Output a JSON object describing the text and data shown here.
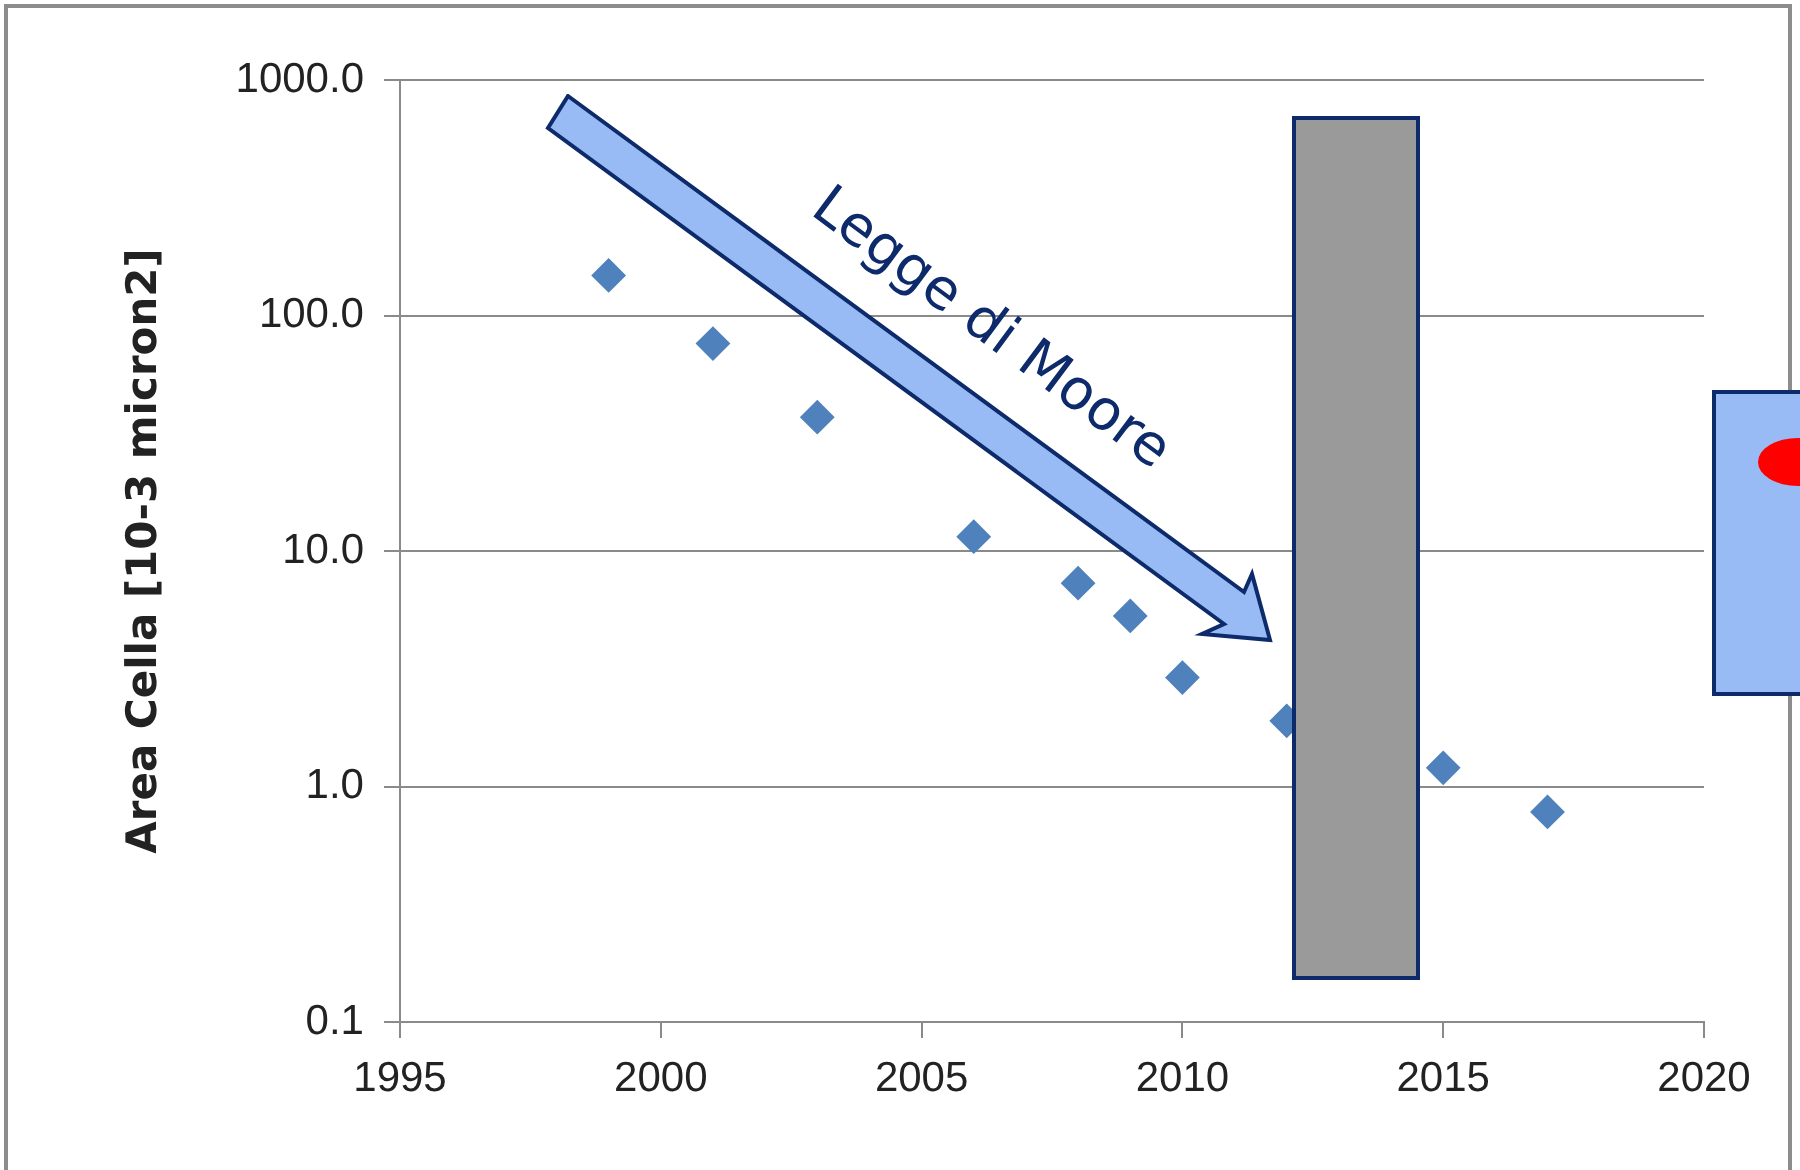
{
  "chart_data": {
    "type": "scatter",
    "ylabel": "Area Cella [10-3 micron2]",
    "x": [
      1999,
      2001,
      2003,
      2006,
      2008,
      2009,
      2010,
      2012,
      2015,
      2017
    ],
    "values": [
      148,
      76,
      37,
      11.5,
      7.3,
      5.3,
      2.9,
      1.9,
      1.2,
      0.78
    ],
    "color": "#4f81bd",
    "marker": "diamond",
    "log": "y",
    "grid": "y",
    "xlim": [
      1995,
      2020
    ],
    "xticks": [
      1995,
      2000,
      2005,
      2010,
      2015,
      2020
    ],
    "ylim": [
      0.1,
      1000
    ],
    "yticks": [
      {
        "value": 0.1,
        "label": "0.1"
      },
      {
        "value": 1,
        "label": "1.0"
      },
      {
        "value": 10,
        "label": "10.0"
      },
      {
        "value": 100,
        "label": "100.0"
      },
      {
        "value": 1000,
        "label": "1000.0"
      }
    ],
    "annotations": [
      "Legge di Moore"
    ]
  }
}
